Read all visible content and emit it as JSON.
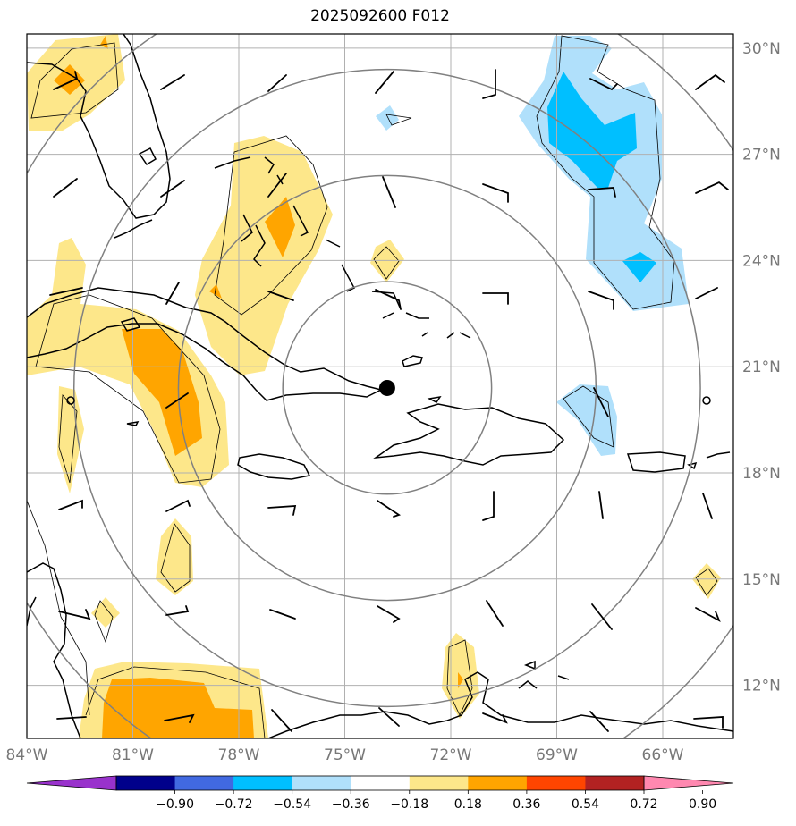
{
  "title": "2025092600 F012",
  "map": {
    "lon_range": [
      -84,
      -64
    ],
    "lat_range": [
      10.5,
      30.4
    ],
    "lat_ticks": [
      {
        "value": 30,
        "label": "30°N"
      },
      {
        "value": 27,
        "label": "27°N"
      },
      {
        "value": 24,
        "label": "24°N"
      },
      {
        "value": 21,
        "label": "21°N"
      },
      {
        "value": 18,
        "label": "18°N"
      },
      {
        "value": 15,
        "label": "15°N"
      },
      {
        "value": 12,
        "label": "12°N"
      }
    ],
    "lon_ticks": [
      {
        "value": -84,
        "label": "84°W"
      },
      {
        "value": -81,
        "label": "81°W"
      },
      {
        "value": -78,
        "label": "78°W"
      },
      {
        "value": -75,
        "label": "75°W"
      },
      {
        "value": -72,
        "label": "72°W"
      },
      {
        "value": -69,
        "label": "69°W"
      },
      {
        "value": -66,
        "label": "66°W"
      }
    ],
    "center": {
      "lon": -73.8,
      "lat": 20.4
    },
    "range_rings_deg": [
      3,
      6,
      9,
      12
    ],
    "colors": {
      "land_outline": "#000000",
      "grid": "#b0b0b0",
      "ring": "#808080",
      "pos1": "#fde78a",
      "pos2": "#ffa500",
      "neg1": "#b0e0fb",
      "neg2": "#00bfff"
    }
  },
  "colorbar": {
    "colors": [
      "#9932cc",
      "#00008b",
      "#4169e1",
      "#00bfff",
      "#b0e0fb",
      "#ffffff",
      "#fde78a",
      "#ffa500",
      "#ff4500",
      "#b22222",
      "#ff88b0"
    ],
    "tick_labels": [
      "−0.90",
      "−0.72",
      "−0.54",
      "−0.36",
      "−0.18",
      "0.18",
      "0.36",
      "0.54",
      "0.72",
      "0.90"
    ]
  }
}
